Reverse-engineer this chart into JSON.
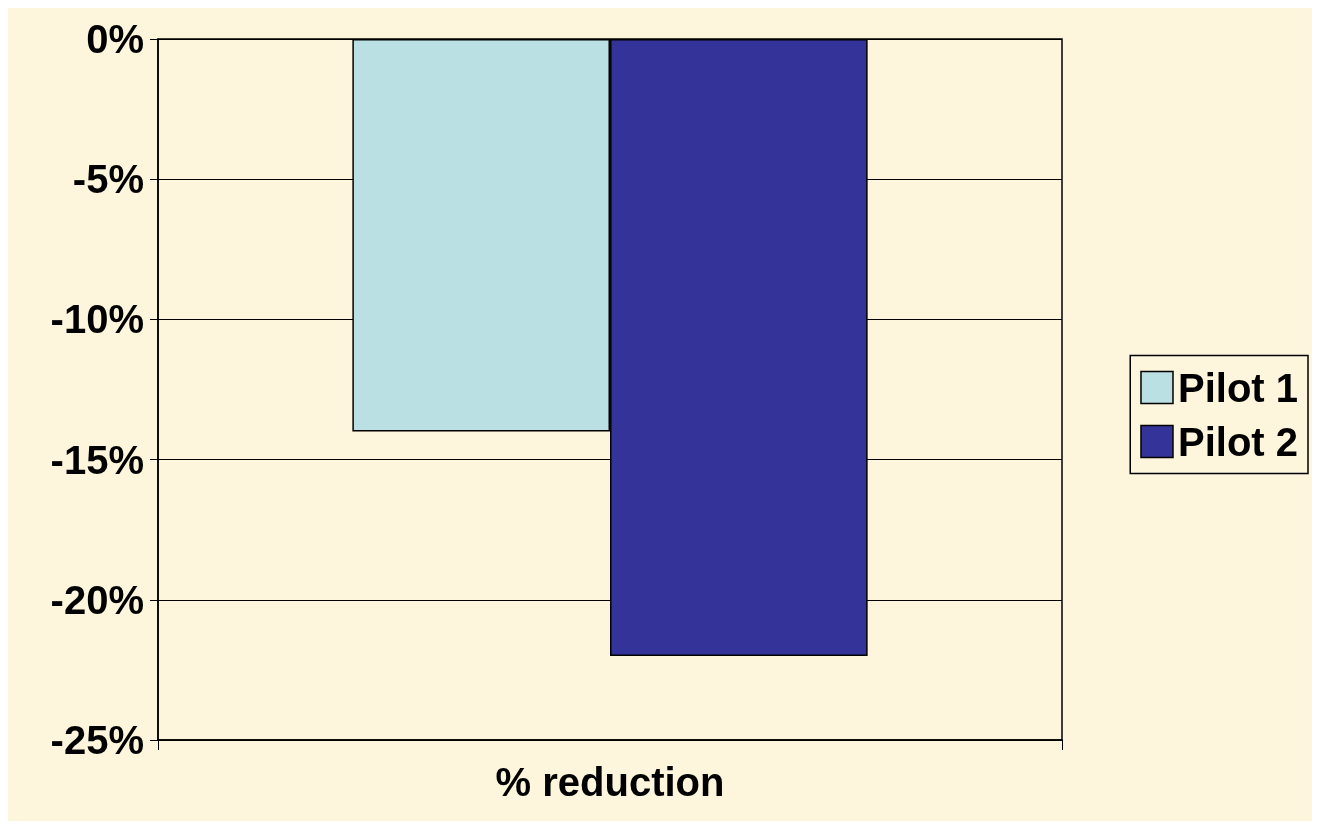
{
  "chart_data": {
    "type": "bar",
    "categories": [
      "% reduction"
    ],
    "series": [
      {
        "name": "Pilot 1",
        "color": "#bbe0e3",
        "values": [
          -14
        ]
      },
      {
        "name": "Pilot 2",
        "color": "#333399",
        "values": [
          -22
        ]
      }
    ],
    "ylim": [
      -25,
      0
    ],
    "yticks": [
      {
        "value": 0,
        "label": "0%"
      },
      {
        "value": -5,
        "label": "-5%"
      },
      {
        "value": -10,
        "label": "-10%"
      },
      {
        "value": -15,
        "label": "-15%"
      },
      {
        "value": -20,
        "label": "-20%"
      },
      {
        "value": -25,
        "label": "-25%"
      }
    ],
    "grid": "y",
    "legend": "right"
  }
}
